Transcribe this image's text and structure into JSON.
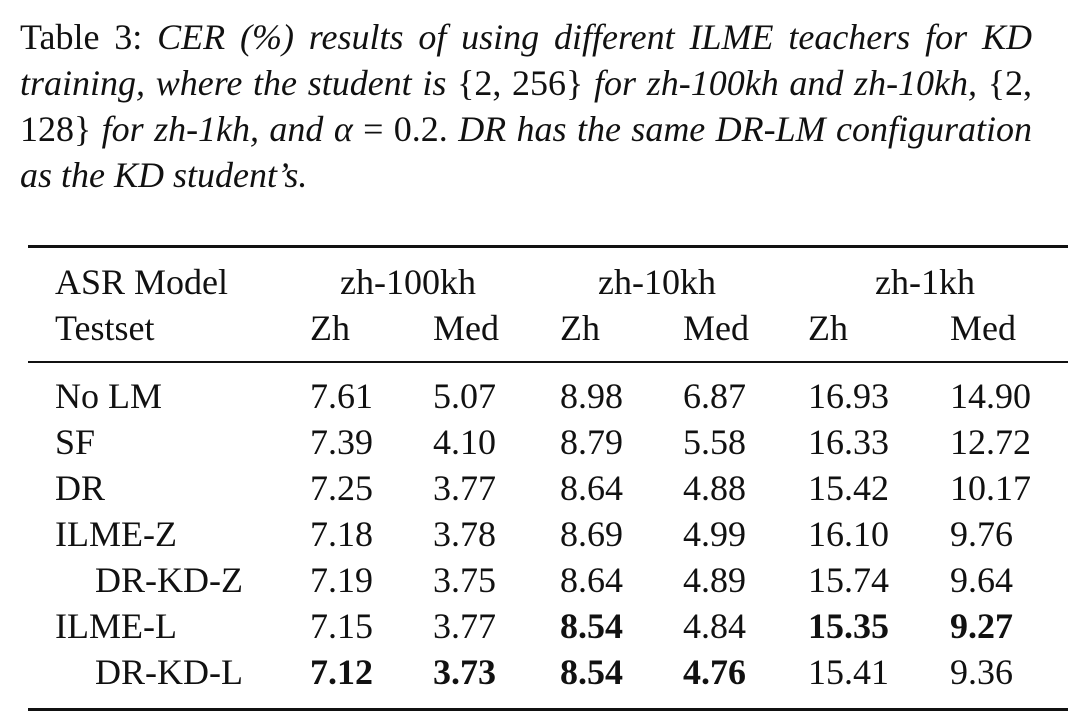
{
  "caption": {
    "segments": [
      "Table 3:",
      "CER (%) results of using different ILME teachers for KD training, where the student is",
      "{2, 256}",
      "for zh-100kh and zh-10kh,",
      "{2, 128}",
      "for zh-1kh, and",
      "α",
      "= 0.2.",
      "DR has the same DR-LM configuration as the KD student’s."
    ]
  },
  "table": {
    "header": {
      "row_label": "ASR Model",
      "groups": [
        "zh-100kh",
        "zh-10kh",
        "zh-1kh"
      ],
      "testset_label": "Testset",
      "subheaders": [
        "Zh",
        "Med",
        "Zh",
        "Med",
        "Zh",
        "Med"
      ]
    },
    "rows": [
      {
        "label": "No LM",
        "values": [
          "7.61",
          "5.07",
          "8.98",
          "6.87",
          "16.93",
          "14.90"
        ]
      },
      {
        "label": "SF",
        "values": [
          "7.39",
          "4.10",
          "8.79",
          "5.58",
          "16.33",
          "12.72"
        ]
      },
      {
        "label": "DR",
        "values": [
          "7.25",
          "3.77",
          "8.64",
          "4.88",
          "15.42",
          "10.17"
        ]
      },
      {
        "label": "ILME-Z",
        "values": [
          "7.18",
          "3.78",
          "8.69",
          "4.99",
          "16.10",
          "9.76"
        ]
      },
      {
        "label": "DR-KD-Z",
        "indent": true,
        "values": [
          "7.19",
          "3.75",
          "8.64",
          "4.89",
          "15.74",
          "9.64"
        ]
      },
      {
        "label": "ILME-L",
        "values": [
          "7.15",
          "3.77",
          "8.54",
          "4.84",
          "15.35",
          "9.27"
        ],
        "bold": [
          2,
          4,
          5
        ]
      },
      {
        "label": "DR-KD-L",
        "indent": true,
        "values": [
          "7.12",
          "3.73",
          "8.54",
          "4.76",
          "15.41",
          "9.36"
        ],
        "bold": [
          0,
          1,
          2,
          3
        ]
      }
    ]
  }
}
